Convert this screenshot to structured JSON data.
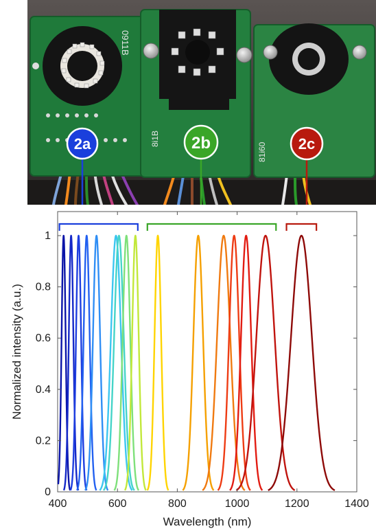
{
  "badges": [
    {
      "label": "2a",
      "color": "#1a3fdc"
    },
    {
      "label": "2b",
      "color": "#3aa628"
    },
    {
      "label": "2c",
      "color": "#b81a0e"
    }
  ],
  "board_codes": [
    "0911B",
    "8i1B",
    "81i60"
  ],
  "chart_data": {
    "type": "line",
    "xlabel": "Wavelength (nm)",
    "ylabel": "Normalized intensity (a.u.)",
    "xlim": [
      400,
      1400
    ],
    "ylim": [
      0,
      1.05
    ],
    "xticks": [
      400,
      600,
      800,
      1000,
      1200,
      1400
    ],
    "yticks": [
      0,
      0.2,
      0.4,
      0.6,
      0.8,
      1
    ],
    "grid": false,
    "groups": [
      {
        "label": "2a",
        "range": [
          406,
          668
        ],
        "color": "#1a3fdc"
      },
      {
        "label": "2b",
        "range": [
          700,
          1130
        ],
        "color": "#3aa628"
      },
      {
        "label": "2c",
        "range": [
          1165,
          1265
        ],
        "color": "#b81a0e"
      }
    ],
    "series": [
      {
        "peak": 420,
        "fwhm": 16,
        "color": "#0a14a8"
      },
      {
        "peak": 445,
        "fwhm": 18,
        "color": "#1428c8"
      },
      {
        "peak": 470,
        "fwhm": 20,
        "color": "#1e3ee0"
      },
      {
        "peak": 497,
        "fwhm": 24,
        "color": "#2260f0"
      },
      {
        "peak": 530,
        "fwhm": 28,
        "color": "#2f8ef5"
      },
      {
        "peak": 595,
        "fwhm": 40,
        "color": "#3cc6f0"
      },
      {
        "peak": 605,
        "fwhm": 38,
        "color": "#45d4c8"
      },
      {
        "peak": 630,
        "fwhm": 30,
        "color": "#7ee07a"
      },
      {
        "peak": 660,
        "fwhm": 26,
        "color": "#c2e83a"
      },
      {
        "peak": 735,
        "fwhm": 26,
        "color": "#ffd400"
      },
      {
        "peak": 870,
        "fwhm": 38,
        "color": "#f5a000"
      },
      {
        "peak": 955,
        "fwhm": 52,
        "color": "#f07a10"
      },
      {
        "peak": 990,
        "fwhm": 40,
        "color": "#ee3c14"
      },
      {
        "peak": 1030,
        "fwhm": 40,
        "color": "#e21c12"
      },
      {
        "peak": 1095,
        "fwhm": 72,
        "color": "#c0140e"
      },
      {
        "peak": 1215,
        "fwhm": 82,
        "color": "#8e0a08"
      }
    ]
  }
}
